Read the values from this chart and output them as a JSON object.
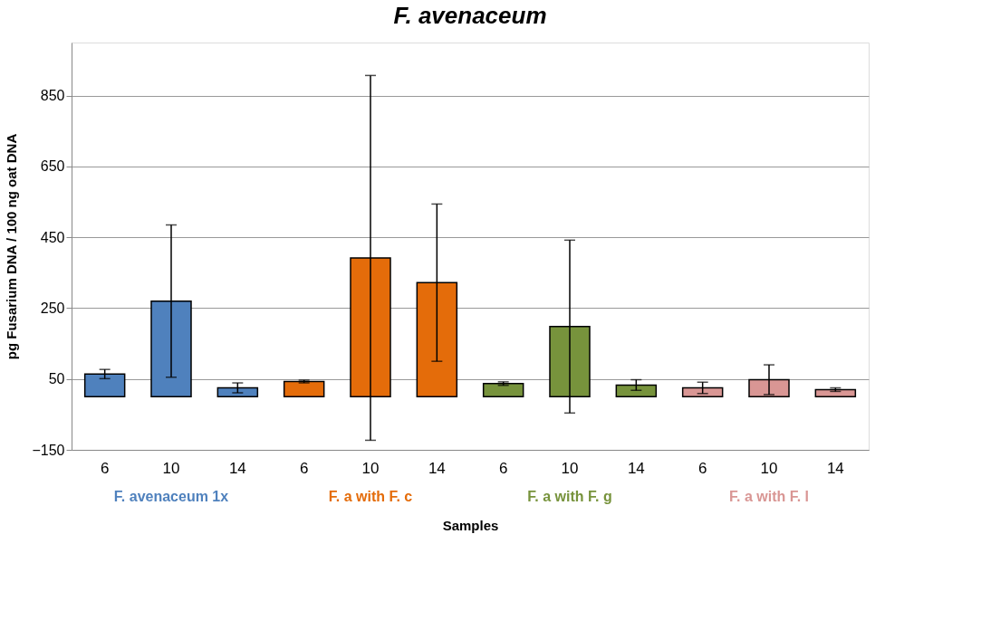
{
  "chart_data": {
    "type": "bar",
    "title": "F. avenaceum",
    "xlabel": "Samples",
    "ylabel": "pg Fusarium DNA / 100 ng oat DNA",
    "categories": [
      "6",
      "10",
      "14",
      "6",
      "10",
      "14",
      "6",
      "10",
      "14",
      "6",
      "10",
      "14"
    ],
    "series": [
      {
        "name": "F. avenaceum 1x",
        "color": "#4f81bd",
        "values": [
          64,
          270,
          25,
          null,
          null,
          null,
          null,
          null,
          null,
          null,
          null,
          null
        ],
        "errors": [
          13,
          215,
          14,
          null,
          null,
          null,
          null,
          null,
          null,
          null,
          null,
          null
        ]
      },
      {
        "name": "F. a with F. c",
        "color": "#e46c0a",
        "values": [
          null,
          null,
          null,
          43,
          392,
          322,
          null,
          null,
          null,
          null,
          null,
          null
        ],
        "errors": [
          null,
          null,
          null,
          4,
          515,
          222,
          null,
          null,
          null,
          null,
          null,
          null
        ]
      },
      {
        "name": "F. a with F. g",
        "color": "#77933c",
        "values": [
          null,
          null,
          null,
          null,
          null,
          null,
          37,
          198,
          33,
          null,
          null,
          null
        ],
        "errors": [
          null,
          null,
          null,
          null,
          null,
          null,
          5,
          244,
          15,
          null,
          null,
          null
        ]
      },
      {
        "name": "F. a with F. l",
        "color": "#d99694",
        "values": [
          null,
          null,
          null,
          null,
          null,
          null,
          null,
          null,
          null,
          25,
          48,
          20
        ],
        "errors": [
          null,
          null,
          null,
          null,
          null,
          null,
          null,
          null,
          null,
          16,
          42,
          5
        ]
      }
    ],
    "ylim": [
      -150,
      1000
    ],
    "yticks": [
      -150,
      50,
      250,
      450,
      650,
      850
    ],
    "grid": "y"
  }
}
